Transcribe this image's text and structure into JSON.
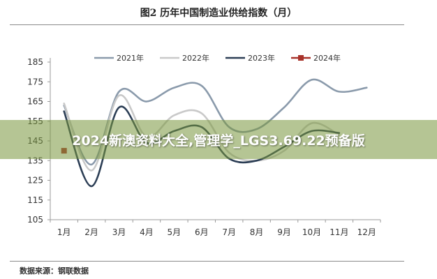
{
  "figure_title": "图2 历年中国制造业供给指数（月）",
  "source": "数据来源：钢联数据",
  "banner": "2024新澳资料大全,管理学_LGS3.69.22预备版",
  "colors": {
    "s2021": "#8a9aab",
    "s2022": "#c9c9c9",
    "s2023": "#2c3e55",
    "s2024": "#a8322a",
    "axis": "#9a9a9a",
    "text": "#333333"
  },
  "chart_data": {
    "type": "line",
    "title": "",
    "xlabel": "",
    "ylabel": "",
    "ylim": [
      105,
      185
    ],
    "yticks": [
      105,
      115,
      125,
      135,
      145,
      155,
      165,
      175,
      185
    ],
    "categories": [
      "1月",
      "2月",
      "3月",
      "4月",
      "5月",
      "6月",
      "7月",
      "8月",
      "9月",
      "10月",
      "11月",
      "12月"
    ],
    "legend_position": "top",
    "grid": false,
    "series": [
      {
        "name": "2021年",
        "color": "#8a9aab",
        "marker": "none",
        "values": [
          163,
          133,
          170,
          165,
          172,
          173,
          152,
          151,
          162,
          176,
          170,
          172
        ]
      },
      {
        "name": "2022年",
        "color": "#c9c9c9",
        "marker": "none",
        "values": [
          164,
          130,
          168,
          147,
          158,
          159,
          139,
          135,
          140,
          154,
          148,
          null
        ]
      },
      {
        "name": "2023年",
        "color": "#2c3e55",
        "marker": "none",
        "values": [
          160,
          122,
          162,
          144,
          150,
          152,
          136,
          135,
          142,
          150,
          149,
          null
        ]
      },
      {
        "name": "2024年",
        "color": "#a8322a",
        "marker": "square",
        "values": [
          140,
          null,
          null,
          null,
          null,
          null,
          null,
          null,
          null,
          null,
          null,
          null
        ]
      }
    ]
  }
}
